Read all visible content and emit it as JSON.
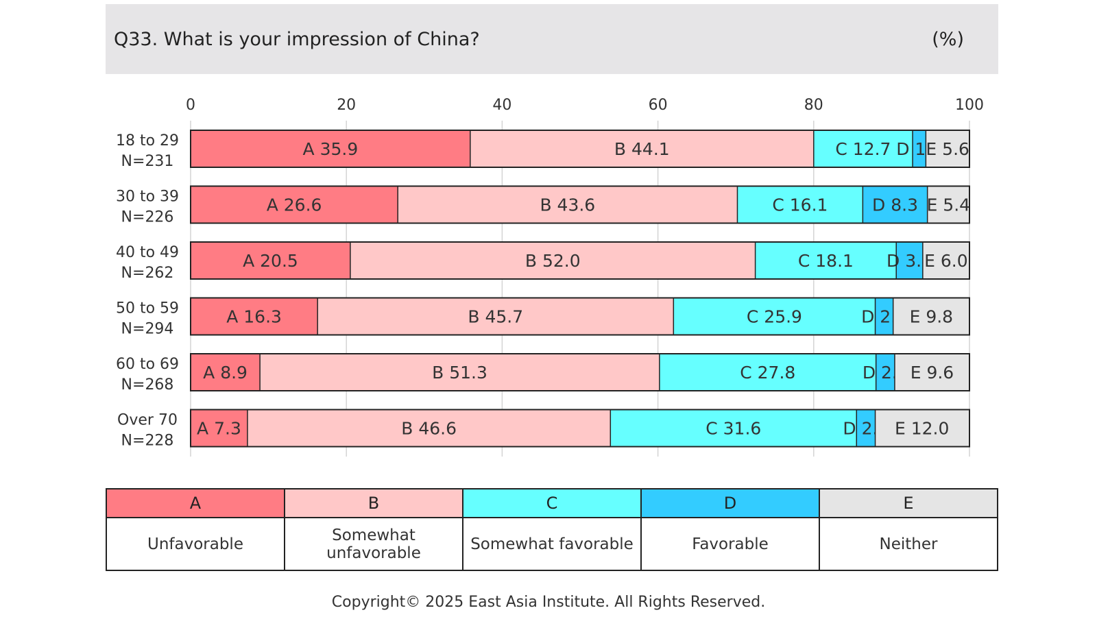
{
  "header": {
    "question": "Q33. What is your impression of China?",
    "unit": "(%)"
  },
  "chart_data": {
    "type": "bar",
    "orientation": "horizontal",
    "stacked": true,
    "title": "Q33. What is your impression of China?",
    "xlim": [
      0,
      100
    ],
    "x_ticks": [
      "0",
      "20",
      "40",
      "60",
      "80",
      "100"
    ],
    "grid": true,
    "categories": [
      "18 to 29",
      "30 to 39",
      "40 to 49",
      "50 to 59",
      "60 to 69",
      "Over 70"
    ],
    "sample_sizes": [
      "N=231",
      "N=226",
      "N=262",
      "N=294",
      "N=268",
      "N=228"
    ],
    "series": [
      {
        "key": "A",
        "name": "Unfavorable",
        "color": "#ff7c84",
        "values": [
          35.9,
          26.6,
          20.5,
          16.3,
          8.9,
          7.3
        ]
      },
      {
        "key": "B",
        "name": "Somewhat unfavorable",
        "color": "#ffc8c8",
        "values": [
          44.1,
          43.6,
          52.0,
          45.7,
          51.3,
          46.6
        ]
      },
      {
        "key": "C",
        "name": "Somewhat favorable",
        "color": "#66ffff",
        "values": [
          12.7,
          16.1,
          18.1,
          25.9,
          27.8,
          31.6
        ]
      },
      {
        "key": "D",
        "name": "Favorable",
        "color": "#33ccff",
        "values": [
          1.7,
          8.3,
          3.4,
          2.3,
          2.4,
          2.4
        ]
      },
      {
        "key": "E",
        "name": "Neither",
        "color": "#e5e5e5",
        "values": [
          5.6,
          5.4,
          6.0,
          9.8,
          9.6,
          12.0
        ]
      }
    ]
  },
  "legend": {
    "keys": [
      "A",
      "B",
      "C",
      "D",
      "E"
    ],
    "labels": [
      "Unfavorable",
      "Somewhat unfavorable",
      "Somewhat favorable",
      "Favorable",
      "Neither"
    ]
  },
  "copyright": "Copyright© 2025 East Asia Institute. All Rights Reserved."
}
